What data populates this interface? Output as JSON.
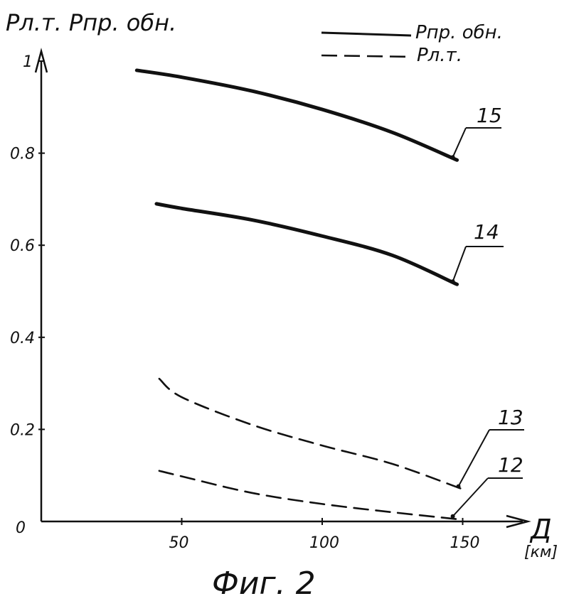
{
  "chart_data": {
    "type": "line",
    "ylabel": "Pл.т. Pпр. обн.",
    "xlabel": "Д",
    "xunit": "[км]",
    "xlim": [
      0,
      175
    ],
    "ylim": [
      0,
      1.0
    ],
    "x_ticks": [
      "50",
      "100",
      "150"
    ],
    "y_ticks": [
      "0",
      "0.2",
      "0.4",
      "0.6",
      "0.8",
      "1"
    ],
    "caption": "Фиг. 2",
    "legend": [
      {
        "label": "Pпр. обн.",
        "style": "solid"
      },
      {
        "label": "Pл.т.",
        "style": "dashed"
      }
    ],
    "series": [
      {
        "name": "15",
        "style": "solid",
        "x": [
          34,
          50,
          75,
          100,
          125,
          148
        ],
        "y": [
          0.98,
          0.965,
          0.935,
          0.895,
          0.845,
          0.785
        ]
      },
      {
        "name": "14",
        "style": "solid",
        "x": [
          41,
          50,
          75,
          100,
          125,
          148
        ],
        "y": [
          0.69,
          0.68,
          0.655,
          0.62,
          0.578,
          0.515
        ]
      },
      {
        "name": "13",
        "style": "dashed",
        "x": [
          42,
          50,
          75,
          100,
          125,
          150
        ],
        "y": [
          0.31,
          0.27,
          0.21,
          0.165,
          0.125,
          0.07
        ]
      },
      {
        "name": "12",
        "style": "dashed",
        "x": [
          42,
          50,
          75,
          100,
          125,
          148
        ],
        "y": [
          0.11,
          0.098,
          0.062,
          0.038,
          0.02,
          0.005
        ]
      }
    ]
  }
}
